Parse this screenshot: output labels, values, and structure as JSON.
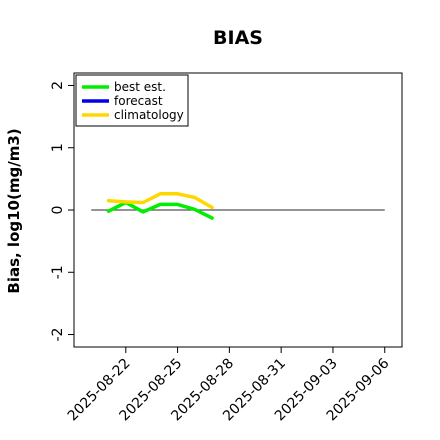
{
  "chart_data": {
    "type": "line",
    "title": "BIAS",
    "xlabel": "",
    "ylabel": "Bias, log10(mg/m3)",
    "ylim": [
      -2.2,
      2.2
    ],
    "yticks": [
      -2,
      -1,
      0,
      1,
      2
    ],
    "ytick_labels": [
      "-2",
      "-1",
      "0",
      "1",
      "2"
    ],
    "xlim": [
      "2025-08-19",
      "2025-09-07"
    ],
    "xticks": [
      "2025-08-22",
      "2025-08-25",
      "2025-08-28",
      "2025-08-31",
      "2025-09-03",
      "2025-09-06"
    ],
    "highlight_tick": "2025-08-28",
    "highlight_color": "#228B22",
    "zero_line_range": [
      "2025-08-20",
      "2025-09-06"
    ],
    "legend": {
      "position": "top-left"
    },
    "series": [
      {
        "name": "best est.",
        "color": "#00ee00",
        "x": [
          "2025-08-21",
          "2025-08-22",
          "2025-08-23",
          "2025-08-24",
          "2025-08-25",
          "2025-08-26",
          "2025-08-27"
        ],
        "values": [
          -0.02,
          0.12,
          -0.03,
          0.09,
          0.09,
          0.01,
          -0.13
        ]
      },
      {
        "name": "forecast",
        "color": "#0000ee",
        "x": [],
        "values": []
      },
      {
        "name": "climatology",
        "color": "#ffd700",
        "x": [
          "2025-08-21",
          "2025-08-22",
          "2025-08-23",
          "2025-08-24",
          "2025-08-25",
          "2025-08-26",
          "2025-08-27"
        ],
        "values": [
          0.15,
          0.13,
          0.12,
          0.26,
          0.26,
          0.2,
          0.04
        ]
      }
    ]
  }
}
